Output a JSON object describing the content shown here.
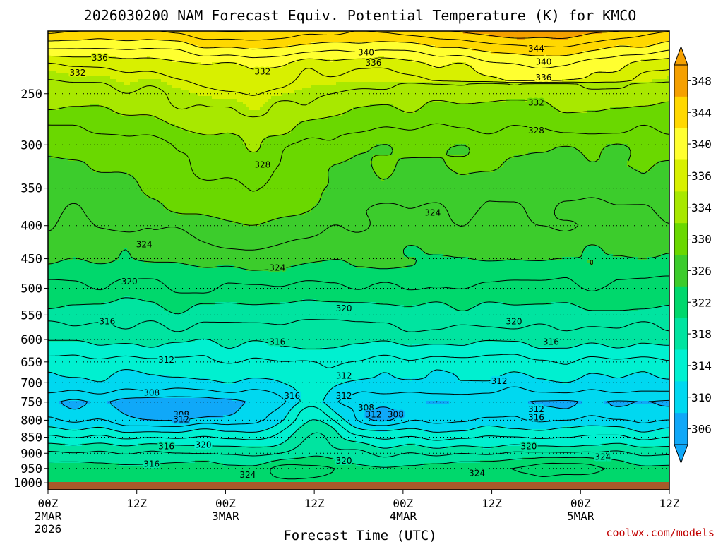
{
  "chart_data": {
    "type": "heatmap",
    "title": "2026030200 NAM Forecast Equiv. Potential Temperature (K) for KMCO",
    "xlabel": "Forecast Time (UTC)",
    "ylabel": "",
    "credit": "coolwx.com/models",
    "x_ticks": [
      {
        "hour": 0,
        "lines": [
          "00Z",
          "2MAR",
          "2026"
        ]
      },
      {
        "hour": 12,
        "lines": [
          "12Z"
        ]
      },
      {
        "hour": 24,
        "lines": [
          "00Z",
          "3MAR"
        ]
      },
      {
        "hour": 36,
        "lines": [
          "12Z"
        ]
      },
      {
        "hour": 48,
        "lines": [
          "00Z",
          "4MAR"
        ]
      },
      {
        "hour": 60,
        "lines": [
          "12Z"
        ]
      },
      {
        "hour": 72,
        "lines": [
          "00Z",
          "5MAR"
        ]
      },
      {
        "hour": 84,
        "lines": [
          "12Z"
        ]
      }
    ],
    "xlim": [
      0,
      84
    ],
    "y_ticks": [
      250,
      300,
      350,
      400,
      450,
      500,
      550,
      600,
      650,
      700,
      750,
      800,
      850,
      900,
      950,
      1000
    ],
    "ylim": [
      1025,
      200
    ],
    "y_scale": "log-pressure",
    "grid": "dotted horizontal at each pressure tick",
    "colorbar": {
      "labels": [
        348,
        344,
        340,
        336,
        334,
        330,
        326,
        322,
        318,
        314,
        310,
        306
      ],
      "bands": [
        {
          "range": [
            346,
            350
          ],
          "color": "#f5a000"
        },
        {
          "range": [
            342,
            346
          ],
          "color": "#ffd800"
        },
        {
          "range": [
            338,
            342
          ],
          "color": "#ffff30"
        },
        {
          "range": [
            335,
            338
          ],
          "color": "#d8f000"
        },
        {
          "range": [
            332,
            335
          ],
          "color": "#a8e800"
        },
        {
          "range": [
            328,
            332
          ],
          "color": "#6ad800"
        },
        {
          "range": [
            324,
            328
          ],
          "color": "#3ccc2c"
        },
        {
          "range": [
            320,
            324
          ],
          "color": "#00d86c"
        },
        {
          "range": [
            316,
            320
          ],
          "color": "#00e4a0"
        },
        {
          "range": [
            312,
            316
          ],
          "color": "#00f0d0"
        },
        {
          "range": [
            308,
            312
          ],
          "color": "#00d8f0"
        },
        {
          "range": [
            304,
            308
          ],
          "color": "#10a8f8"
        }
      ]
    },
    "contour_labels": [
      {
        "v": 336,
        "h": 7,
        "p": 220
      },
      {
        "v": 332,
        "h": 4,
        "p": 232
      },
      {
        "v": 332,
        "h": 29,
        "p": 231
      },
      {
        "v": 340,
        "h": 43,
        "p": 216
      },
      {
        "v": 336,
        "h": 44,
        "p": 224
      },
      {
        "v": 344,
        "h": 66,
        "p": 213
      },
      {
        "v": 340,
        "h": 67,
        "p": 223
      },
      {
        "v": 336,
        "h": 67,
        "p": 236
      },
      {
        "v": 332,
        "h": 66,
        "p": 258
      },
      {
        "v": 328,
        "h": 66,
        "p": 285
      },
      {
        "v": 328,
        "h": 29,
        "p": 322
      },
      {
        "v": 324,
        "h": 52,
        "p": 382
      },
      {
        "v": 324,
        "h": 13,
        "p": 428
      },
      {
        "v": 324,
        "h": 31,
        "p": 465
      },
      {
        "v": 320,
        "h": 11,
        "p": 488
      },
      {
        "v": 320,
        "h": 40,
        "p": 537
      },
      {
        "v": 320,
        "h": 63,
        "p": 563
      },
      {
        "v": 316,
        "h": 8,
        "p": 563
      },
      {
        "v": 316,
        "h": 31,
        "p": 605
      },
      {
        "v": 316,
        "h": 68,
        "p": 605
      },
      {
        "v": 312,
        "h": 16,
        "p": 645
      },
      {
        "v": 312,
        "h": 40,
        "p": 683
      },
      {
        "v": 312,
        "h": 61,
        "p": 696
      },
      {
        "v": 308,
        "h": 14,
        "p": 725
      },
      {
        "v": 316,
        "h": 33,
        "p": 734
      },
      {
        "v": 312,
        "h": 40,
        "p": 734
      },
      {
        "v": 308,
        "h": 43,
        "p": 766
      },
      {
        "v": 312,
        "h": 44,
        "p": 784
      },
      {
        "v": 308,
        "h": 47,
        "p": 784
      },
      {
        "v": 308,
        "h": 18,
        "p": 784
      },
      {
        "v": 312,
        "h": 18,
        "p": 798
      },
      {
        "v": 312,
        "h": 66,
        "p": 770
      },
      {
        "v": 316,
        "h": 66,
        "p": 792
      },
      {
        "v": 316,
        "h": 16,
        "p": 878
      },
      {
        "v": 320,
        "h": 21,
        "p": 874
      },
      {
        "v": 320,
        "h": 65,
        "p": 878
      },
      {
        "v": 324,
        "h": 75,
        "p": 912
      },
      {
        "v": 316,
        "h": 14,
        "p": 935
      },
      {
        "v": 320,
        "h": 40,
        "p": 925
      },
      {
        "v": 324,
        "h": 27,
        "p": 972
      },
      {
        "v": 324,
        "h": 58,
        "p": 966
      }
    ]
  }
}
